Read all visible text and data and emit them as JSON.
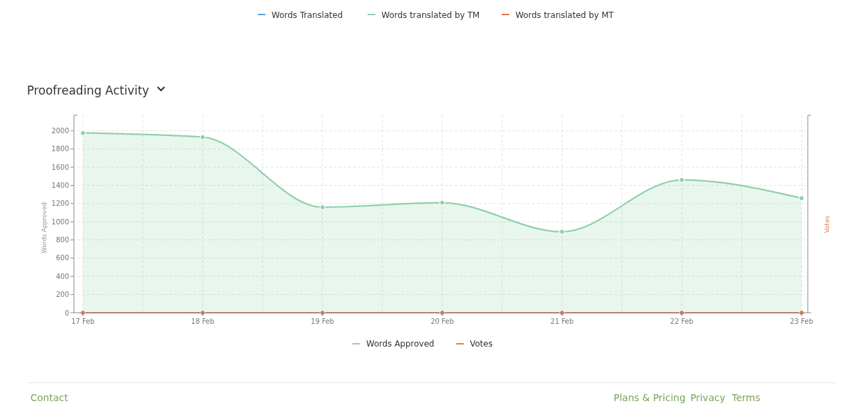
{
  "chart_data": {
    "type": "area",
    "title": "Proofreading Activity",
    "ylabel": "Words Approved",
    "y2label": "Votes",
    "categories": [
      "17 Feb",
      "18 Feb",
      "19 Feb",
      "20 Feb",
      "21 Feb",
      "22 Feb",
      "23 Feb"
    ],
    "series": [
      {
        "name": "Words Approved",
        "color": "#8fd1ab",
        "values": [
          1975,
          1930,
          1160,
          1210,
          890,
          1460,
          1260
        ]
      },
      {
        "name": "Votes",
        "type": "line",
        "color": "#e07b4f",
        "values": [
          0,
          0,
          0,
          0,
          0,
          0,
          0
        ]
      }
    ],
    "ylim": [
      0,
      2170
    ],
    "yticks": [
      0,
      200,
      400,
      600,
      800,
      1000,
      1200,
      1400,
      1600,
      1800,
      2000
    ],
    "grid": true,
    "legend": "bottom",
    "marker": "circle",
    "annotations": [
      "Words Translated",
      "Words translated by TM",
      "Words translated by MT",
      "Contact",
      "Plans & Pricing",
      "Privacy",
      "Terms"
    ]
  }
}
